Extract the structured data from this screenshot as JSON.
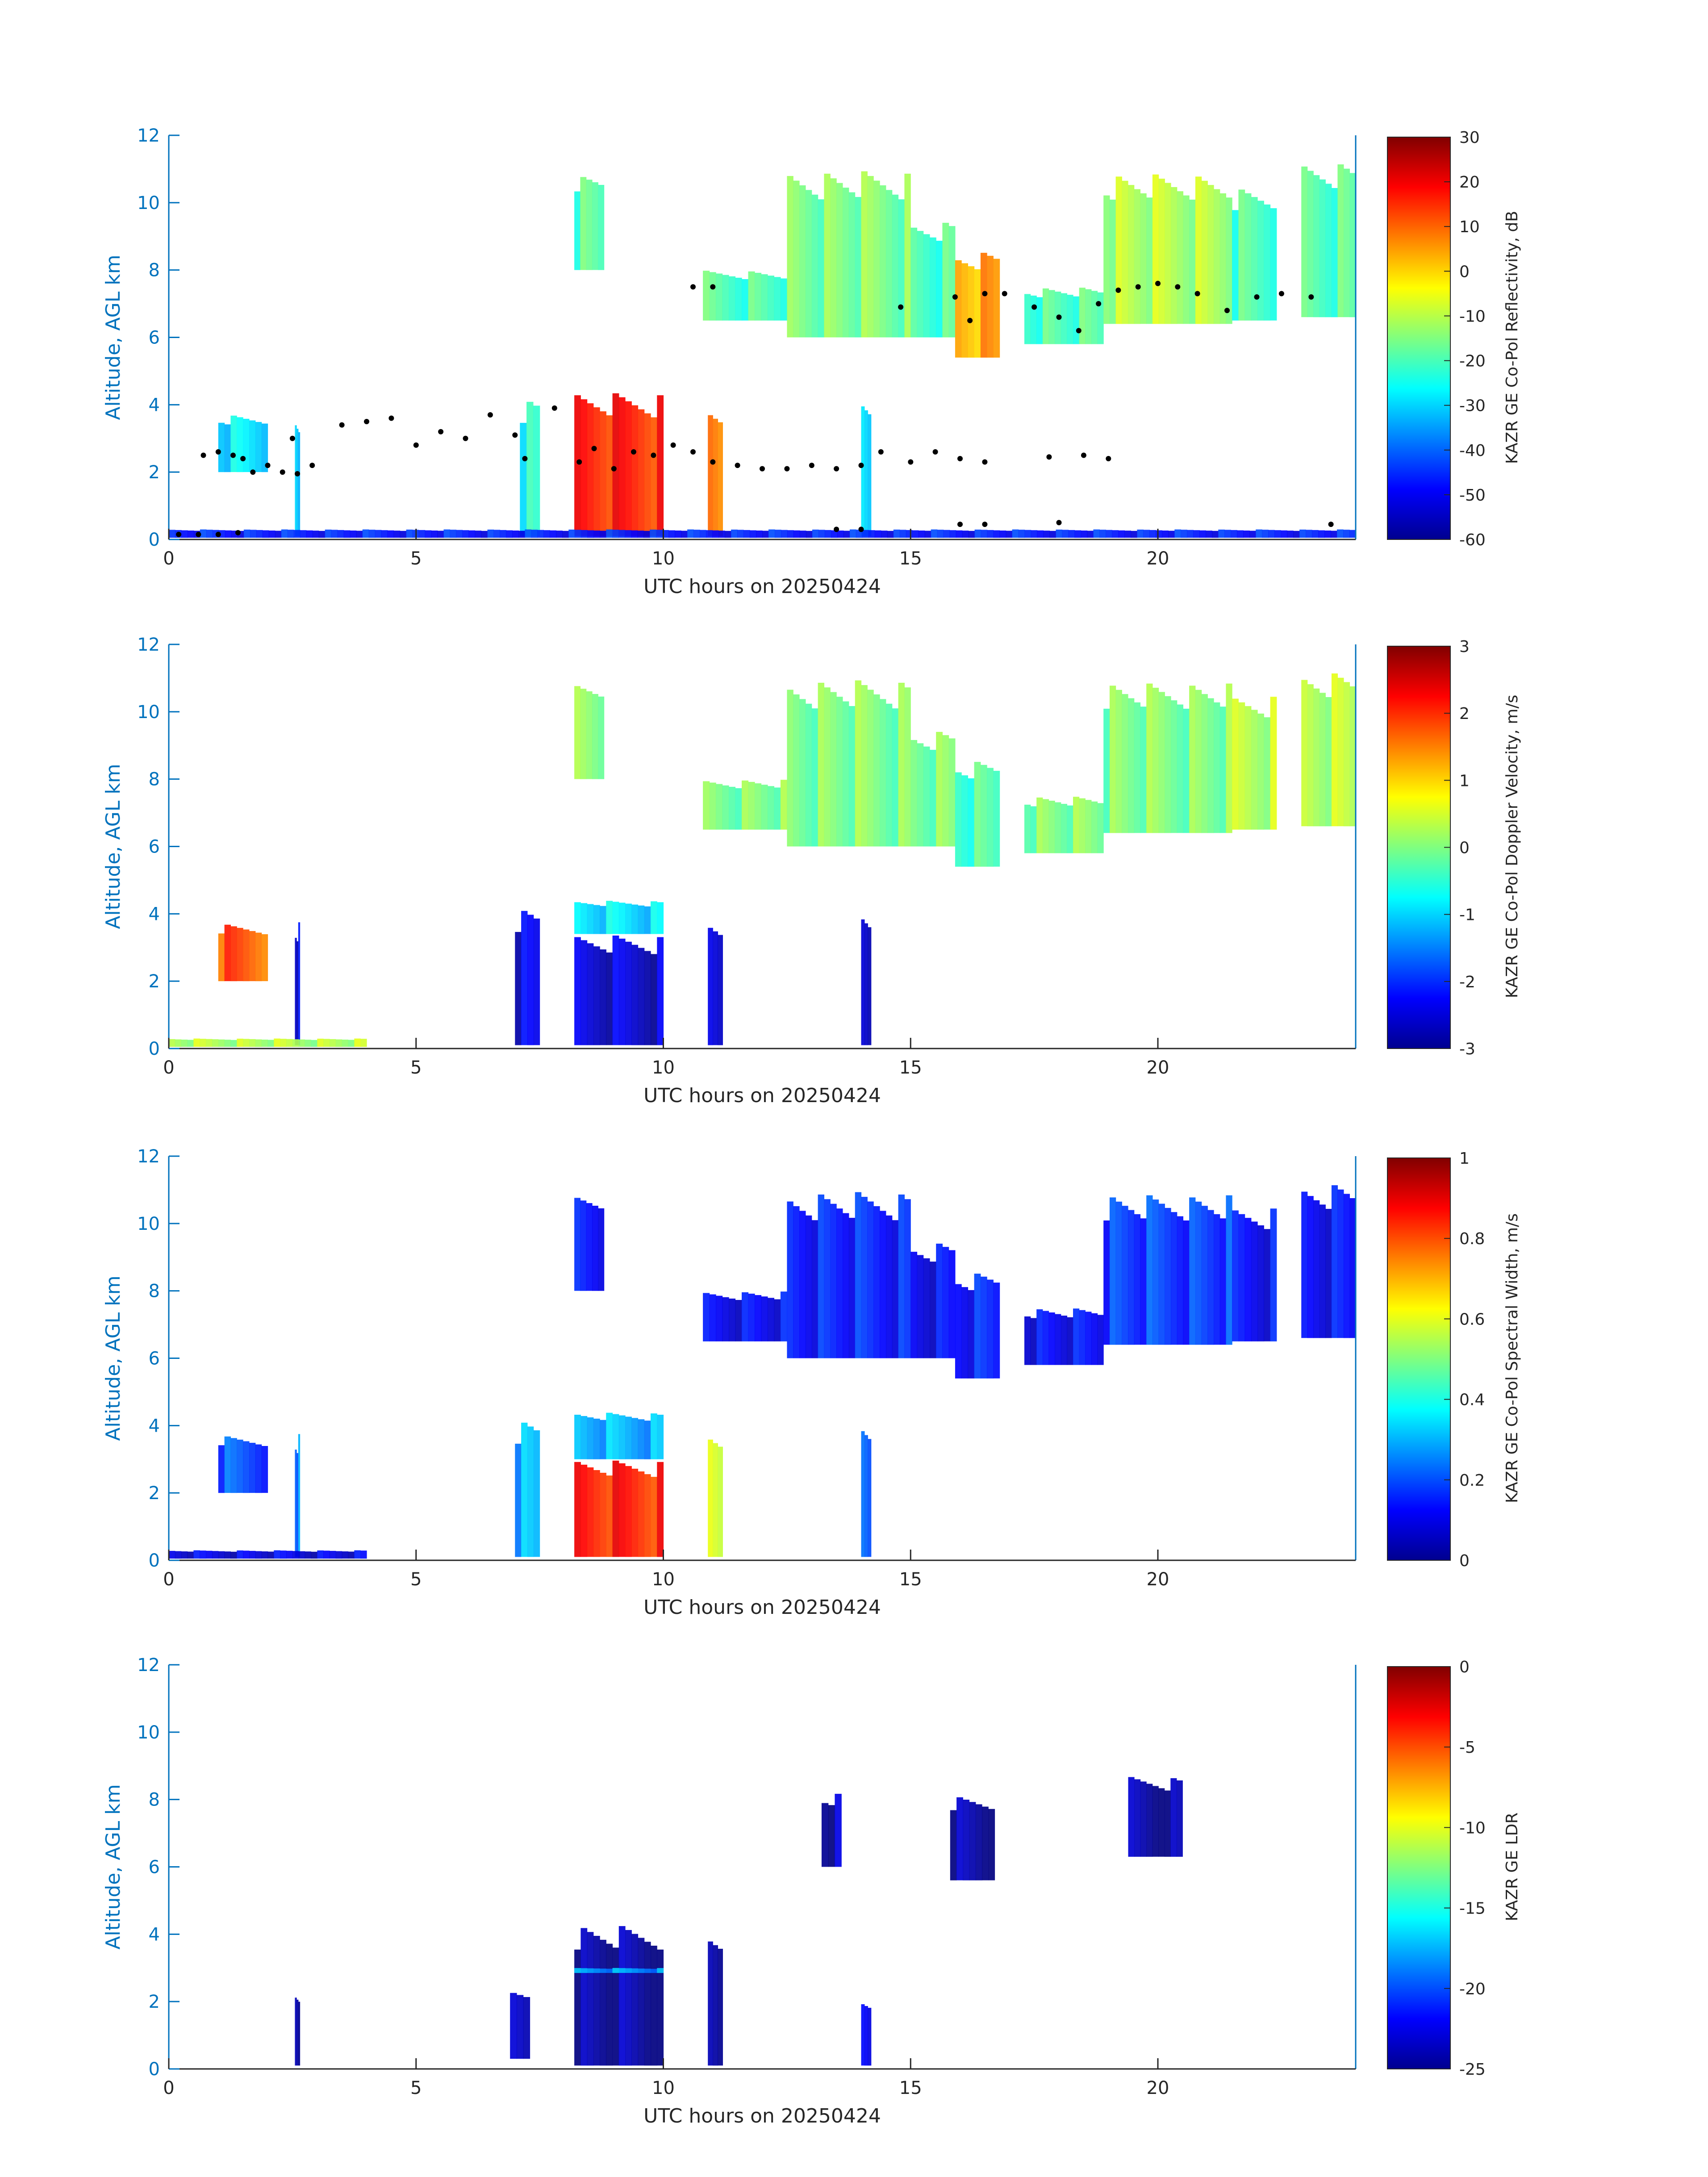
{
  "chart_data": [
    {
      "type": "heatmap",
      "xlabel": "UTC hours on 20250424",
      "ylabel": "Altitude, AGL km",
      "xlim": [
        0,
        24
      ],
      "ylim": [
        0,
        12
      ],
      "x_ticks": [
        0,
        5,
        10,
        15,
        20
      ],
      "y_ticks": [
        0,
        2,
        4,
        6,
        8,
        10,
        12
      ],
      "colorbar": {
        "label": "KAZR GE Co-Pol Reflectivity, dB",
        "range": [
          -60,
          30
        ],
        "ticks": [
          30,
          20,
          10,
          0,
          -10,
          -20,
          -30,
          -40,
          -50,
          -60
        ],
        "colormap": "jet"
      },
      "regions": [
        {
          "x0": 7.1,
          "x1": 7.5,
          "y0": 0.1,
          "y1": 4.2,
          "value": 0.4
        },
        {
          "x0": 8.2,
          "x1": 10.0,
          "y0": 0.1,
          "y1": 4.4,
          "value": 0.85
        },
        {
          "x0": 10.9,
          "x1": 11.2,
          "y0": 0.1,
          "y1": 3.9,
          "value": 0.75
        },
        {
          "x0": 14.0,
          "x1": 14.2,
          "y0": 0.1,
          "y1": 4.3,
          "value": 0.35
        },
        {
          "x0": 2.55,
          "x1": 2.65,
          "y0": 0.1,
          "y1": 3.8,
          "value": 0.35
        },
        {
          "x0": 1.0,
          "x1": 2.0,
          "y0": 2.0,
          "y1": 3.7,
          "value": 0.35
        },
        {
          "x0": 8.2,
          "x1": 8.8,
          "y0": 8.0,
          "y1": 10.8,
          "value": 0.45
        },
        {
          "x0": 10.8,
          "x1": 12.5,
          "y0": 6.5,
          "y1": 8.0,
          "value": 0.45
        },
        {
          "x0": 12.5,
          "x1": 15.0,
          "y0": 6.0,
          "y1": 11.0,
          "value": 0.5
        },
        {
          "x0": 15.0,
          "x1": 15.9,
          "y0": 6.0,
          "y1": 9.5,
          "value": 0.45
        },
        {
          "x0": 15.9,
          "x1": 16.8,
          "y0": 5.4,
          "y1": 8.6,
          "value": 0.72
        },
        {
          "x0": 17.3,
          "x1": 18.9,
          "y0": 5.8,
          "y1": 7.5,
          "value": 0.45
        },
        {
          "x0": 18.9,
          "x1": 21.5,
          "y0": 6.4,
          "y1": 10.9,
          "value": 0.55
        },
        {
          "x0": 21.5,
          "x1": 22.4,
          "y0": 6.5,
          "y1": 10.5,
          "value": 0.45
        },
        {
          "x0": 22.9,
          "x1": 24.0,
          "y0": 6.6,
          "y1": 11.2,
          "value": 0.45
        },
        {
          "x0": 0.0,
          "x1": 24.0,
          "y0": 0.05,
          "y1": 0.3,
          "value": 0.15
        }
      ],
      "scatter": {
        "color": "#000000",
        "points": [
          [
            0.2,
            0.15
          ],
          [
            0.6,
            0.15
          ],
          [
            1.0,
            0.15
          ],
          [
            1.4,
            0.2
          ],
          [
            0.7,
            2.5
          ],
          [
            1.0,
            2.6
          ],
          [
            1.3,
            2.5
          ],
          [
            1.5,
            2.4
          ],
          [
            1.7,
            2.0
          ],
          [
            2.0,
            2.2
          ],
          [
            2.3,
            2.0
          ],
          [
            2.6,
            1.95
          ],
          [
            2.9,
            2.2
          ],
          [
            2.5,
            3.0
          ],
          [
            3.5,
            3.4
          ],
          [
            4.0,
            3.5
          ],
          [
            4.5,
            3.6
          ],
          [
            5.0,
            2.8
          ],
          [
            5.5,
            3.2
          ],
          [
            6.0,
            3.0
          ],
          [
            6.5,
            3.7
          ],
          [
            7.0,
            3.1
          ],
          [
            7.2,
            2.4
          ],
          [
            7.8,
            3.9
          ],
          [
            8.3,
            2.3
          ],
          [
            8.6,
            2.7
          ],
          [
            9.0,
            2.1
          ],
          [
            9.4,
            2.6
          ],
          [
            9.8,
            2.5
          ],
          [
            10.2,
            2.8
          ],
          [
            10.6,
            2.6
          ],
          [
            11.0,
            2.3
          ],
          [
            11.5,
            2.2
          ],
          [
            12.0,
            2.1
          ],
          [
            12.5,
            2.1
          ],
          [
            13.0,
            2.2
          ],
          [
            13.5,
            2.1
          ],
          [
            14.0,
            2.2
          ],
          [
            14.4,
            2.6
          ],
          [
            15.0,
            2.3
          ],
          [
            15.5,
            2.6
          ],
          [
            16.0,
            2.4
          ],
          [
            16.5,
            2.3
          ],
          [
            17.8,
            2.45
          ],
          [
            18.5,
            2.5
          ],
          [
            19.0,
            2.4
          ],
          [
            10.6,
            7.5
          ],
          [
            11.0,
            7.5
          ],
          [
            14.8,
            6.9
          ],
          [
            15.9,
            7.2
          ],
          [
            16.2,
            6.5
          ],
          [
            16.5,
            7.3
          ],
          [
            16.9,
            7.3
          ],
          [
            17.5,
            6.9
          ],
          [
            18.0,
            6.6
          ],
          [
            18.4,
            6.2
          ],
          [
            18.8,
            7.0
          ],
          [
            19.2,
            7.4
          ],
          [
            19.6,
            7.5
          ],
          [
            20.0,
            7.6
          ],
          [
            20.4,
            7.5
          ],
          [
            20.8,
            7.3
          ],
          [
            21.4,
            6.8
          ],
          [
            22.0,
            7.2
          ],
          [
            22.5,
            7.3
          ],
          [
            23.1,
            7.2
          ],
          [
            13.5,
            0.3
          ],
          [
            14.0,
            0.3
          ],
          [
            16.0,
            0.45
          ],
          [
            16.5,
            0.45
          ],
          [
            18.0,
            0.5
          ],
          [
            23.5,
            0.45
          ]
        ]
      }
    },
    {
      "type": "heatmap",
      "xlabel": "UTC hours on 20250424",
      "ylabel": "Altitude, AGL km",
      "xlim": [
        0,
        24
      ],
      "ylim": [
        0,
        12
      ],
      "x_ticks": [
        0,
        5,
        10,
        15,
        20
      ],
      "y_ticks": [
        0,
        2,
        4,
        6,
        8,
        10,
        12
      ],
      "colorbar": {
        "label": "KAZR GE Co-Pol Doppler Velocity, m/s",
        "range": [
          -3,
          3
        ],
        "ticks": [
          3,
          2,
          1,
          0,
          -1,
          -2,
          -3
        ],
        "colormap": "jet"
      },
      "regions": [
        {
          "x0": 7.0,
          "x1": 7.5,
          "y0": 0.1,
          "y1": 4.2,
          "value": 0.1
        },
        {
          "x0": 8.2,
          "x1": 10.0,
          "y0": 0.1,
          "y1": 3.4,
          "value": 0.08
        },
        {
          "x0": 8.2,
          "x1": 10.0,
          "y0": 3.4,
          "y1": 4.4,
          "value": 0.35
        },
        {
          "x0": 10.9,
          "x1": 11.2,
          "y0": 0.1,
          "y1": 3.9,
          "value": 0.1
        },
        {
          "x0": 14.0,
          "x1": 14.2,
          "y0": 0.1,
          "y1": 4.3,
          "value": 0.1
        },
        {
          "x0": 2.55,
          "x1": 2.65,
          "y0": 0.1,
          "y1": 3.8,
          "value": 0.1
        },
        {
          "x0": 1.0,
          "x1": 2.0,
          "y0": 2.0,
          "y1": 3.7,
          "value": 0.8
        },
        {
          "x0": 8.2,
          "x1": 8.8,
          "y0": 8.0,
          "y1": 10.8,
          "value": 0.5
        },
        {
          "x0": 10.8,
          "x1": 12.5,
          "y0": 6.5,
          "y1": 8.0,
          "value": 0.5
        },
        {
          "x0": 12.5,
          "x1": 15.0,
          "y0": 6.0,
          "y1": 11.0,
          "value": 0.5
        },
        {
          "x0": 15.0,
          "x1": 15.9,
          "y0": 6.0,
          "y1": 9.5,
          "value": 0.5
        },
        {
          "x0": 15.9,
          "x1": 16.8,
          "y0": 5.4,
          "y1": 8.6,
          "value": 0.45
        },
        {
          "x0": 17.3,
          "x1": 18.9,
          "y0": 5.8,
          "y1": 7.5,
          "value": 0.5
        },
        {
          "x0": 18.9,
          "x1": 21.5,
          "y0": 6.4,
          "y1": 10.9,
          "value": 0.5
        },
        {
          "x0": 21.5,
          "x1": 22.4,
          "y0": 6.5,
          "y1": 10.5,
          "value": 0.55
        },
        {
          "x0": 22.9,
          "x1": 24.0,
          "y0": 6.6,
          "y1": 11.2,
          "value": 0.55
        },
        {
          "x0": 0.0,
          "x1": 4.0,
          "y0": 0.05,
          "y1": 0.3,
          "value": 0.55
        }
      ]
    },
    {
      "type": "heatmap",
      "xlabel": "UTC hours on 20250424",
      "ylabel": "Altitude, AGL km",
      "xlim": [
        0,
        24
      ],
      "ylim": [
        0,
        12
      ],
      "x_ticks": [
        0,
        5,
        10,
        15,
        20
      ],
      "y_ticks": [
        0,
        2,
        4,
        6,
        8,
        10,
        12
      ],
      "colorbar": {
        "label": "KAZR GE Co-Pol Spectral Width, m/s",
        "range": [
          0,
          1
        ],
        "ticks": [
          1,
          0.8,
          0.6,
          0.4,
          0.2,
          0
        ],
        "colormap": "jet"
      },
      "regions": [
        {
          "x0": 7.0,
          "x1": 7.5,
          "y0": 0.1,
          "y1": 4.2,
          "value": 0.3
        },
        {
          "x0": 8.2,
          "x1": 10.0,
          "y0": 0.1,
          "y1": 3.0,
          "value": 0.85
        },
        {
          "x0": 8.2,
          "x1": 10.0,
          "y0": 3.0,
          "y1": 4.4,
          "value": 0.3
        },
        {
          "x0": 10.9,
          "x1": 11.2,
          "y0": 0.1,
          "y1": 3.9,
          "value": 0.6
        },
        {
          "x0": 14.0,
          "x1": 14.2,
          "y0": 0.1,
          "y1": 4.3,
          "value": 0.25
        },
        {
          "x0": 2.55,
          "x1": 2.65,
          "y0": 0.1,
          "y1": 3.8,
          "value": 0.25
        },
        {
          "x0": 1.0,
          "x1": 2.0,
          "y0": 2.0,
          "y1": 3.7,
          "value": 0.2
        },
        {
          "x0": 8.2,
          "x1": 8.8,
          "y0": 8.0,
          "y1": 10.8,
          "value": 0.12
        },
        {
          "x0": 10.8,
          "x1": 12.5,
          "y0": 6.5,
          "y1": 8.0,
          "value": 0.12
        },
        {
          "x0": 12.5,
          "x1": 15.0,
          "y0": 6.0,
          "y1": 11.0,
          "value": 0.15
        },
        {
          "x0": 15.0,
          "x1": 15.9,
          "y0": 6.0,
          "y1": 9.5,
          "value": 0.12
        },
        {
          "x0": 15.9,
          "x1": 16.8,
          "y0": 5.4,
          "y1": 8.6,
          "value": 0.15
        },
        {
          "x0": 17.3,
          "x1": 18.9,
          "y0": 5.8,
          "y1": 7.5,
          "value": 0.12
        },
        {
          "x0": 18.9,
          "x1": 21.5,
          "y0": 6.4,
          "y1": 10.9,
          "value": 0.18
        },
        {
          "x0": 21.5,
          "x1": 22.4,
          "y0": 6.5,
          "y1": 10.5,
          "value": 0.12
        },
        {
          "x0": 22.9,
          "x1": 24.0,
          "y0": 6.6,
          "y1": 11.2,
          "value": 0.12
        },
        {
          "x0": 0.0,
          "x1": 4.0,
          "y0": 0.05,
          "y1": 0.3,
          "value": 0.1
        }
      ]
    },
    {
      "type": "heatmap",
      "xlabel": "UTC hours on 20250424",
      "ylabel": "Altitude, AGL km",
      "xlim": [
        0,
        24
      ],
      "ylim": [
        0,
        12
      ],
      "x_ticks": [
        0,
        5,
        10,
        15,
        20
      ],
      "y_ticks": [
        0,
        2,
        4,
        6,
        8,
        10,
        12
      ],
      "colorbar": {
        "label": "KAZR GE LDR",
        "range": [
          -25,
          0
        ],
        "ticks": [
          0,
          -5,
          -10,
          -15,
          -20,
          -25
        ],
        "colormap": "jet"
      },
      "regions": [
        {
          "x0": 8.2,
          "x1": 10.0,
          "y0": 0.1,
          "y1": 4.3,
          "value": 0.03
        },
        {
          "x0": 8.2,
          "x1": 10.0,
          "y0": 2.85,
          "y1": 3.0,
          "value": 0.28
        },
        {
          "x0": 10.9,
          "x1": 11.2,
          "y0": 0.1,
          "y1": 4.0,
          "value": 0.03
        },
        {
          "x0": 2.55,
          "x1": 2.65,
          "y0": 0.1,
          "y1": 2.3,
          "value": 0.05
        },
        {
          "x0": 6.9,
          "x1": 7.3,
          "y0": 0.3,
          "y1": 2.5,
          "value": 0.1
        },
        {
          "x0": 13.2,
          "x1": 13.6,
          "y0": 6.0,
          "y1": 8.2,
          "value": 0.05
        },
        {
          "x0": 15.8,
          "x1": 16.7,
          "y0": 5.6,
          "y1": 8.1,
          "value": 0.03
        },
        {
          "x0": 19.4,
          "x1": 20.5,
          "y0": 6.3,
          "y1": 8.7,
          "value": 0.03
        },
        {
          "x0": 14.0,
          "x1": 14.2,
          "y0": 0.1,
          "y1": 2.0,
          "value": 0.1
        }
      ]
    }
  ]
}
